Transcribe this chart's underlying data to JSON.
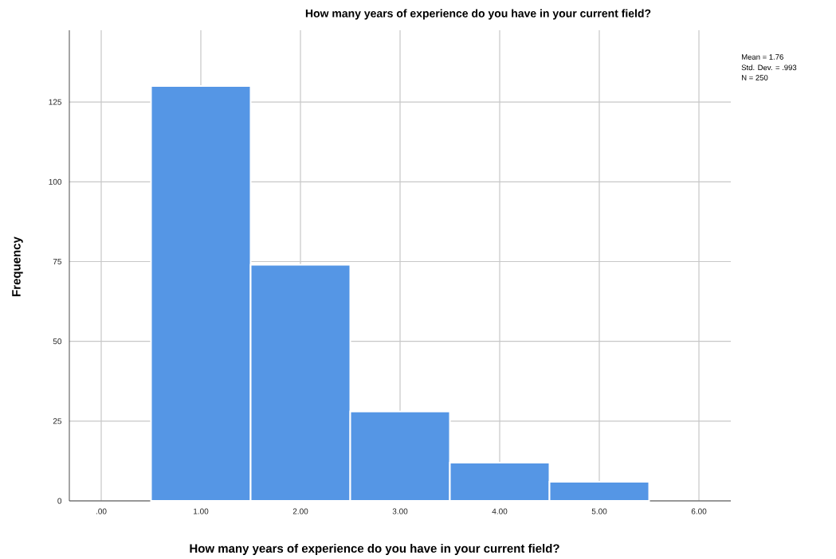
{
  "chart_data": {
    "type": "histogram",
    "title": "How many years of experience do you have in your current field?",
    "xlabel": "How many years of experience do you have in your current field?",
    "ylabel": "Frequency",
    "bins": [
      0.5,
      1.5,
      2.5,
      3.5,
      4.5,
      5.5
    ],
    "values": [
      130,
      74,
      28,
      12,
      6
    ],
    "color": "#5596e5",
    "xlim": [
      -0.32,
      6.32
    ],
    "ylim": [
      0,
      147.5
    ],
    "xticks": [
      {
        "value": 0,
        "label": ".00"
      },
      {
        "value": 1,
        "label": "1.00"
      },
      {
        "value": 2,
        "label": "2.00"
      },
      {
        "value": 3,
        "label": "3.00"
      },
      {
        "value": 4,
        "label": "4.00"
      },
      {
        "value": 5,
        "label": "5.00"
      },
      {
        "value": 6,
        "label": "6.00"
      }
    ],
    "yticks": [
      0,
      25,
      50,
      75,
      100,
      125
    ],
    "grid": true,
    "annotations": [
      "Mean = 1.76",
      "Std. Dev. = .993",
      "N = 250"
    ]
  }
}
